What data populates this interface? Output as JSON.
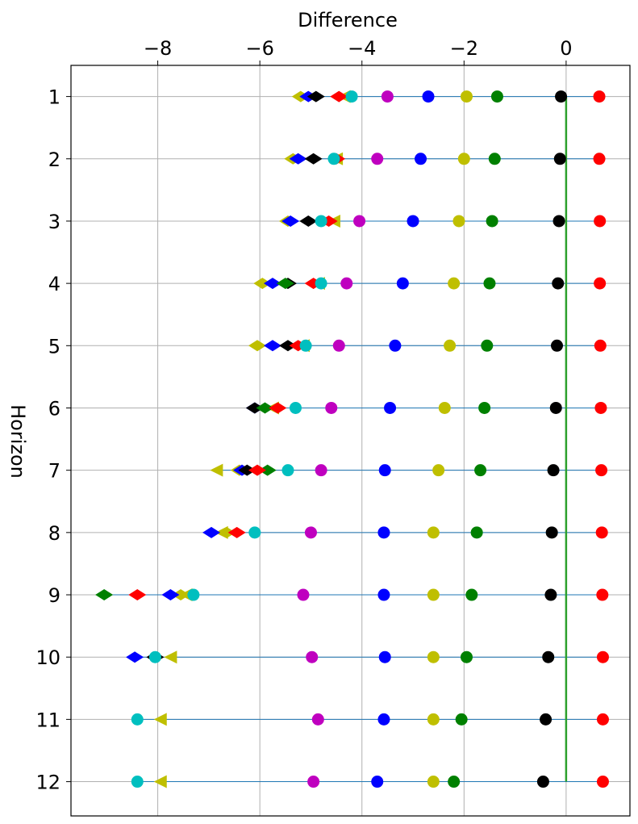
{
  "chart_data": {
    "type": "scatter",
    "xlabel": "Difference",
    "ylabel": "Horizon",
    "xlim": [
      -9.7,
      1.25
    ],
    "ylim": [
      0.5,
      12.55
    ],
    "x_ticks": [
      -8,
      -6,
      -4,
      -2,
      0
    ],
    "x_tick_labels": [
      "−8",
      "−6",
      "−4",
      "−2",
      "0"
    ],
    "y_ticks": [
      1,
      2,
      3,
      4,
      5,
      6,
      7,
      8,
      9,
      10,
      11,
      12
    ],
    "y_tick_labels": [
      "1",
      "2",
      "3",
      "4",
      "5",
      "6",
      "7",
      "8",
      "9",
      "10",
      "11",
      "12"
    ],
    "x_axis_position": "top",
    "grid": true,
    "reference_line": {
      "x": 0,
      "y_from": 1,
      "y_to": 12,
      "color": "#2ca02c"
    },
    "range_line_color": "#1f77b4",
    "colors": {
      "red": "#ff0000",
      "black": "#000000",
      "green": "#008000",
      "yellow": "#bfbf00",
      "blue": "#0000ff",
      "magenta": "#bf00bf",
      "cyan": "#00bfbf"
    },
    "series": [
      {
        "name": "red-circle",
        "marker": "circle",
        "color": "#ff0000",
        "values": [
          0.65,
          0.65,
          0.66,
          0.66,
          0.67,
          0.68,
          0.69,
          0.7,
          0.71,
          0.72,
          0.72,
          0.72
        ]
      },
      {
        "name": "black-circle",
        "marker": "circle",
        "color": "#000000",
        "values": [
          -0.1,
          -0.12,
          -0.14,
          -0.16,
          -0.18,
          -0.2,
          -0.25,
          -0.28,
          -0.3,
          -0.35,
          -0.4,
          -0.45
        ]
      },
      {
        "name": "green-circle",
        "marker": "circle",
        "color": "#008000",
        "values": [
          -1.35,
          -1.4,
          -1.45,
          -1.5,
          -1.55,
          -1.6,
          -1.68,
          -1.75,
          -1.85,
          -1.95,
          -2.05,
          -2.2
        ]
      },
      {
        "name": "yellow-circle",
        "marker": "circle",
        "color": "#bfbf00",
        "values": [
          -1.95,
          -2.0,
          -2.1,
          -2.2,
          -2.28,
          -2.38,
          -2.5,
          -2.6,
          -2.6,
          -2.6,
          -2.6,
          -2.6
        ]
      },
      {
        "name": "blue-circle",
        "marker": "circle",
        "color": "#0000ff",
        "values": [
          -2.7,
          -2.85,
          -3.0,
          -3.2,
          -3.35,
          -3.45,
          -3.55,
          -3.57,
          -3.57,
          -3.55,
          -3.57,
          -3.7
        ]
      },
      {
        "name": "magenta-circle",
        "marker": "circle",
        "color": "#bf00bf",
        "values": [
          -3.5,
          -3.7,
          -4.05,
          -4.3,
          -4.45,
          -4.6,
          -4.8,
          -5.0,
          -5.15,
          -4.98,
          -4.86,
          -4.95
        ]
      },
      {
        "name": "cyan-circle",
        "marker": "circle",
        "color": "#00bfbf",
        "values": [
          -4.2,
          -4.55,
          -4.8,
          -4.8,
          -5.1,
          -5.3,
          -5.45,
          -6.1,
          -7.3,
          -8.05,
          -8.4,
          -8.4
        ]
      },
      {
        "name": "red-diamond",
        "marker": "diamond",
        "color": "#ff0000",
        "values": [
          -4.45,
          -4.5,
          -4.65,
          -4.95,
          -5.25,
          -5.65,
          -6.05,
          -6.45,
          -8.4,
          null,
          null,
          null
        ]
      },
      {
        "name": "green-diamond",
        "marker": "diamond",
        "color": "#008000",
        "values": [
          null,
          null,
          null,
          -5.5,
          null,
          -5.9,
          -5.85,
          null,
          -9.05,
          null,
          null,
          null
        ]
      },
      {
        "name": "black-diamond",
        "marker": "diamond",
        "color": "#000000",
        "values": [
          -4.9,
          -4.95,
          -5.05,
          -5.45,
          -5.45,
          -6.1,
          -6.25,
          null,
          null,
          -8.05,
          null,
          null
        ]
      },
      {
        "name": "blue-diamond",
        "marker": "diamond",
        "color": "#0000ff",
        "values": [
          -5.05,
          -5.25,
          -5.4,
          -5.75,
          -5.75,
          -6.1,
          -6.35,
          -6.95,
          -7.75,
          -8.45,
          null,
          null
        ]
      },
      {
        "name": "yellow-diamond",
        "marker": "diamond",
        "color": "#bfbf00",
        "values": [
          -5.2,
          -5.35,
          -5.45,
          -5.95,
          -6.05,
          null,
          -6.4,
          -6.65,
          -7.55,
          null,
          null,
          null
        ]
      },
      {
        "name": "yellow-triangle",
        "marker": "triangle-left",
        "color": "#bfbf00",
        "values": [
          -4.35,
          -4.5,
          -4.55,
          -4.85,
          -5.15,
          -5.75,
          -6.85,
          -6.75,
          -7.45,
          -7.75,
          -7.95,
          -7.95
        ]
      }
    ]
  }
}
